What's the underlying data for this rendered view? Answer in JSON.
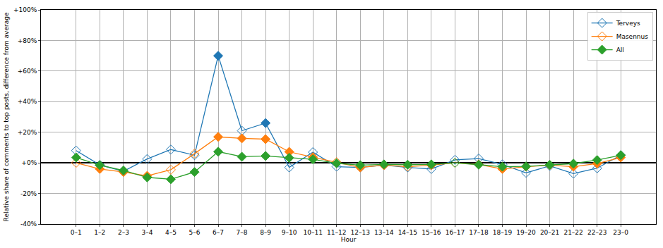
{
  "chart_data": {
    "type": "line",
    "x_label": "Hour",
    "y_label": "Relative share of comments to top posts, difference from average",
    "categories": [
      "0–1",
      "1–2",
      "2–3",
      "3–4",
      "4–5",
      "5–6",
      "6–7",
      "7–8",
      "8–9",
      "9–10",
      "10–11",
      "11–12",
      "12–13",
      "13–14",
      "14–15",
      "15–16",
      "16–17",
      "17–18",
      "18–19",
      "19–20",
      "20–21",
      "21–22",
      "22–23",
      "23–0"
    ],
    "series": [
      {
        "name": "Terveys",
        "color": "#1f77b4",
        "values": [
          8,
          -1.4,
          -5.5,
          2.5,
          8.7,
          5,
          70,
          21,
          26,
          -3,
          7,
          -2.5,
          -3,
          -1.5,
          -3,
          -4,
          2,
          2.8,
          -1,
          -6.5,
          -2,
          -7,
          -3.5,
          5
        ],
        "marker": [
          "diamond-open",
          "diamond-open",
          "diamond-open",
          "diamond-open",
          "diamond-open",
          "diamond-open",
          "diamond",
          "diamond-open",
          "diamond",
          "diamond-open",
          "diamond-open",
          "diamond-open",
          "diamond-open",
          "diamond-open",
          "diamond-open",
          "diamond-open",
          "diamond-open",
          "diamond-open",
          "diamond-open",
          "diamond-open",
          "diamond-open",
          "diamond-open",
          "diamond-open",
          "diamond-open"
        ]
      },
      {
        "name": "Masennus",
        "color": "#ff7f0e",
        "values": [
          0,
          -4,
          -6,
          -8.5,
          -4.5,
          6,
          17,
          16,
          15.5,
          7.2,
          3.7,
          0.5,
          -3,
          -1.5,
          -2.5,
          -1.5,
          0,
          -1,
          -4,
          -2.5,
          -1.5,
          -2.5,
          -0.5,
          3.5
        ],
        "marker": [
          "diamond-open",
          "diamond",
          "diamond",
          "diamond",
          "diamond-open",
          "diamond-open",
          "diamond",
          "diamond",
          "diamond",
          "diamond",
          "diamond",
          "diamond-open",
          "diamond",
          "diamond",
          "diamond-open",
          "diamond",
          "diamond-open",
          "diamond",
          "diamond",
          "diamond",
          "diamond",
          "diamond",
          "diamond",
          "diamond"
        ]
      },
      {
        "name": "All",
        "color": "#2ca02c",
        "values": [
          3.5,
          -1.5,
          -5,
          -9.5,
          -10.7,
          -6,
          7.3,
          4,
          4.5,
          3.3,
          2.3,
          -0.3,
          -1.5,
          -1,
          -1.2,
          -1,
          0,
          -1.2,
          -2.5,
          -2.3,
          -1.3,
          -0.5,
          1.8,
          5
        ],
        "marker": [
          "diamond",
          "diamond",
          "diamond",
          "diamond",
          "diamond",
          "diamond",
          "diamond",
          "diamond",
          "diamond",
          "diamond",
          "diamond",
          "diamond",
          "diamond",
          "diamond",
          "diamond",
          "diamond",
          "diamond-open",
          "diamond",
          "diamond",
          "diamond",
          "diamond",
          "diamond",
          "diamond",
          "diamond"
        ]
      }
    ],
    "ylim": [
      -40,
      100
    ],
    "yticks": [
      {
        "value": -40,
        "label": "-40%"
      },
      {
        "value": -20,
        "label": "-20%"
      },
      {
        "value": 0,
        "label": "+0%"
      },
      {
        "value": 20,
        "label": "+20%"
      },
      {
        "value": 40,
        "label": "+40%"
      },
      {
        "value": 60,
        "label": "+60%"
      },
      {
        "value": 80,
        "label": "+80%"
      },
      {
        "value": 100,
        "label": "+100%"
      }
    ],
    "grid": true,
    "legend": "top-right"
  }
}
